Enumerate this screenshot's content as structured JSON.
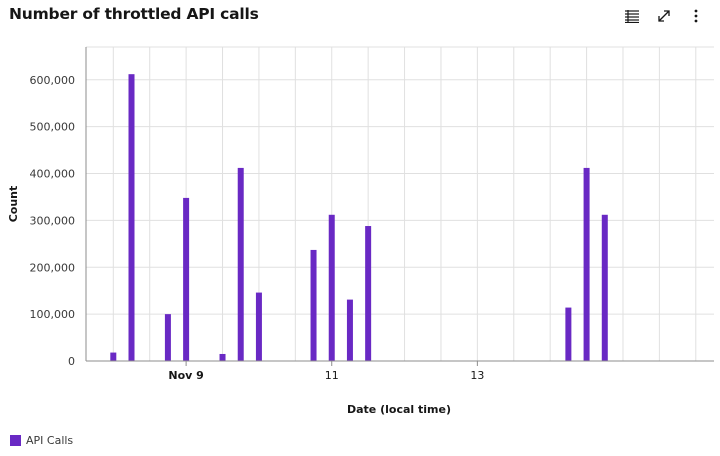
{
  "header": {
    "title": "Number of throttled API calls",
    "icons": [
      "table-view-icon",
      "maximize-icon",
      "overflow-menu-icon"
    ]
  },
  "colors": {
    "series": "#6929c4",
    "grid": "#e0e0e0",
    "axis": "#8d8d8d",
    "text": "#393939"
  },
  "chart_data": {
    "type": "bar",
    "title": "Number of throttled API calls",
    "xlabel": "Date (local time)",
    "ylabel": "Count",
    "x_tick_labels": [
      {
        "date": "2023-11-09",
        "label": "Nov 9"
      },
      {
        "date": "2023-11-11",
        "label": "11"
      },
      {
        "date": "2023-11-13",
        "label": "13"
      }
    ],
    "y_tick_labels": [
      "0",
      "100,000",
      "200,000",
      "300,000",
      "400,000",
      "500,000",
      "600,000"
    ],
    "y_ticks": [
      0,
      100000,
      200000,
      300000,
      400000,
      500000,
      600000
    ],
    "ylim": [
      0,
      670000
    ],
    "xlim": [
      "2023-11-07T15:00",
      "2023-11-16T06:00"
    ],
    "grid": true,
    "legend": "bottom-left",
    "series": [
      {
        "name": "API Calls",
        "x": [
          "2023-11-08T00:00",
          "2023-11-08T06:00",
          "2023-11-08T18:00",
          "2023-11-09T00:00",
          "2023-11-09T12:00",
          "2023-11-09T18:00",
          "2023-11-10T00:00",
          "2023-11-10T18:00",
          "2023-11-11T00:00",
          "2023-11-11T06:00",
          "2023-11-11T12:00",
          "2023-11-14T06:00",
          "2023-11-14T12:00",
          "2023-11-14T18:00"
        ],
        "values": [
          18000,
          612000,
          100000,
          348000,
          15000,
          412000,
          146000,
          237000,
          312000,
          131000,
          288000,
          114000,
          412000,
          312000
        ]
      }
    ]
  }
}
